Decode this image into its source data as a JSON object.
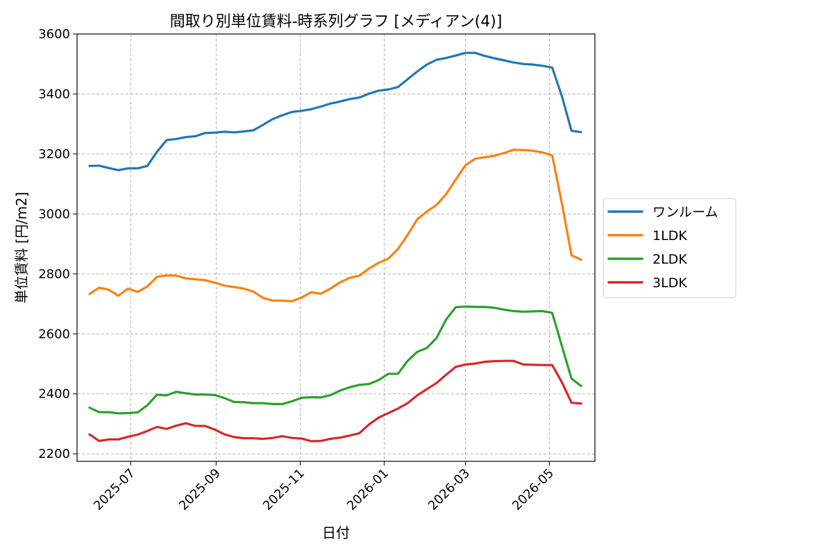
{
  "chart_data": {
    "type": "line",
    "title": "間取り別単位賃料-時系列グラフ [メディアン(4)]",
    "xlabel": "日付",
    "ylabel": "単位賃料 [円/m2]",
    "ylim": [
      2175,
      3600
    ],
    "yticks": [
      2200,
      2400,
      2600,
      2800,
      3000,
      3200,
      3400,
      3600
    ],
    "xlim": [
      "2025-05-23",
      "2026-06-03"
    ],
    "xticks": [
      "2025-07",
      "2025-09",
      "2025-11",
      "2026-01",
      "2026-03",
      "2026-05"
    ],
    "grid": true,
    "legend_position": "right-outside",
    "x": [
      "2025-06-01",
      "2025-06-08",
      "2025-06-15",
      "2025-06-22",
      "2025-06-29",
      "2025-07-06",
      "2025-07-13",
      "2025-07-20",
      "2025-07-27",
      "2025-08-03",
      "2025-08-10",
      "2025-08-17",
      "2025-08-24",
      "2025-08-31",
      "2025-09-07",
      "2025-09-14",
      "2025-09-21",
      "2025-09-28",
      "2025-10-05",
      "2025-10-12",
      "2025-10-19",
      "2025-10-26",
      "2025-11-02",
      "2025-11-09",
      "2025-11-16",
      "2025-11-23",
      "2025-11-30",
      "2025-12-07",
      "2025-12-14",
      "2025-12-21",
      "2025-12-28",
      "2026-01-04",
      "2026-01-11",
      "2026-01-18",
      "2026-01-25",
      "2026-02-01",
      "2026-02-08",
      "2026-02-15",
      "2026-02-22",
      "2026-03-01",
      "2026-03-08",
      "2026-03-15",
      "2026-03-22",
      "2026-03-29",
      "2026-04-05",
      "2026-04-12",
      "2026-04-19",
      "2026-04-26",
      "2026-05-03",
      "2026-05-10",
      "2026-05-17",
      "2026-05-24"
    ],
    "series": [
      {
        "name": "ワンルーム",
        "color": "#1f77b4",
        "values": [
          3160,
          3161,
          3153,
          3146,
          3152,
          3152,
          3160,
          3207,
          3246,
          3250,
          3256,
          3259,
          3270,
          3271,
          3274,
          3272,
          3275,
          3279,
          3297,
          3316,
          3329,
          3340,
          3344,
          3349,
          3358,
          3368,
          3375,
          3383,
          3388,
          3401,
          3411,
          3415,
          3423,
          3449,
          3475,
          3498,
          3514,
          3520,
          3528,
          3537,
          3537,
          3527,
          3519,
          3512,
          3505,
          3500,
          3498,
          3494,
          3488,
          3393,
          3277,
          3273
        ]
      },
      {
        "name": "1LDK",
        "color": "#ff7f0e",
        "values": [
          2733,
          2754,
          2747,
          2727,
          2751,
          2740,
          2758,
          2790,
          2795,
          2794,
          2785,
          2782,
          2779,
          2771,
          2761,
          2756,
          2751,
          2741,
          2720,
          2711,
          2711,
          2709,
          2721,
          2739,
          2734,
          2751,
          2772,
          2787,
          2794,
          2818,
          2837,
          2851,
          2883,
          2930,
          2982,
          3008,
          3030,
          3066,
          3115,
          3162,
          3184,
          3189,
          3194,
          3203,
          3214,
          3213,
          3211,
          3205,
          3195,
          3035,
          2862,
          2847
        ]
      },
      {
        "name": "2LDK",
        "color": "#2ca02c",
        "values": [
          2354,
          2339,
          2339,
          2335,
          2336,
          2338,
          2362,
          2397,
          2395,
          2407,
          2402,
          2398,
          2398,
          2396,
          2386,
          2373,
          2372,
          2369,
          2369,
          2366,
          2366,
          2375,
          2387,
          2389,
          2388,
          2396,
          2411,
          2422,
          2430,
          2433,
          2446,
          2467,
          2467,
          2510,
          2540,
          2553,
          2586,
          2648,
          2689,
          2691,
          2690,
          2690,
          2687,
          2681,
          2676,
          2674,
          2675,
          2676,
          2670,
          2560,
          2451,
          2426
        ]
      },
      {
        "name": "3LDK",
        "color": "#d62728",
        "values": [
          2265,
          2243,
          2248,
          2248,
          2257,
          2264,
          2276,
          2290,
          2283,
          2294,
          2302,
          2293,
          2293,
          2281,
          2265,
          2256,
          2252,
          2252,
          2250,
          2253,
          2259,
          2253,
          2251,
          2242,
          2243,
          2250,
          2254,
          2261,
          2269,
          2298,
          2321,
          2336,
          2351,
          2369,
          2395,
          2416,
          2436,
          2464,
          2490,
          2498,
          2501,
          2507,
          2509,
          2510,
          2510,
          2498,
          2497,
          2496,
          2496,
          2439,
          2370,
          2368
        ]
      }
    ]
  }
}
